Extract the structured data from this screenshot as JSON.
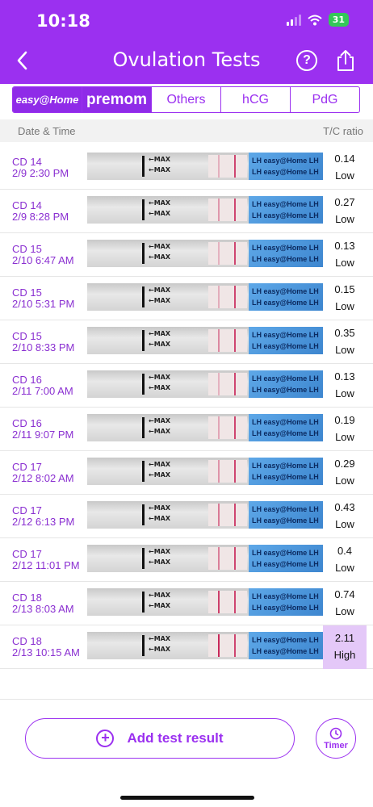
{
  "status_bar": {
    "time": "10:18",
    "battery": "31"
  },
  "header": {
    "title": "Ovulation Tests"
  },
  "brands": [
    "easy@Home",
    "premom",
    "Others",
    "hCG",
    "PdG"
  ],
  "columns": {
    "left": "Date & Time",
    "right": "T/C ratio"
  },
  "strip_text": {
    "max": "←MAX",
    "lh": "LH  easy@Home  LH"
  },
  "rows": [
    {
      "cd": "CD 14",
      "datetime": "2/9 2:30 PM",
      "ratio": "0.14",
      "status": "Low"
    },
    {
      "cd": "CD 14",
      "datetime": "2/9 8:28 PM",
      "ratio": "0.27",
      "status": "Low"
    },
    {
      "cd": "CD 15",
      "datetime": "2/10 6:47 AM",
      "ratio": "0.13",
      "status": "Low"
    },
    {
      "cd": "CD 15",
      "datetime": "2/10 5:31 PM",
      "ratio": "0.15",
      "status": "Low"
    },
    {
      "cd": "CD 15",
      "datetime": "2/10 8:33 PM",
      "ratio": "0.35",
      "status": "Low"
    },
    {
      "cd": "CD 16",
      "datetime": "2/11 7:00 AM",
      "ratio": "0.13",
      "status": "Low"
    },
    {
      "cd": "CD 16",
      "datetime": "2/11 9:07 PM",
      "ratio": "0.19",
      "status": "Low"
    },
    {
      "cd": "CD 17",
      "datetime": "2/12 8:02 AM",
      "ratio": "0.29",
      "status": "Low"
    },
    {
      "cd": "CD 17",
      "datetime": "2/12 6:13 PM",
      "ratio": "0.43",
      "status": "Low"
    },
    {
      "cd": "CD 17",
      "datetime": "2/12 11:01 PM",
      "ratio": "0.4",
      "status": "Low"
    },
    {
      "cd": "CD 18",
      "datetime": "2/13 8:03 AM",
      "ratio": "0.74",
      "status": "Low"
    },
    {
      "cd": "CD 18",
      "datetime": "2/13 10:15 AM",
      "ratio": "2.11",
      "status": "High"
    }
  ],
  "footer": {
    "add_label": "Add test result",
    "timer_label": "Timer"
  },
  "colors": {
    "accent": "#9b30f0",
    "high_bg": "#e4c8f8",
    "strip_blue": "#4a93da"
  }
}
